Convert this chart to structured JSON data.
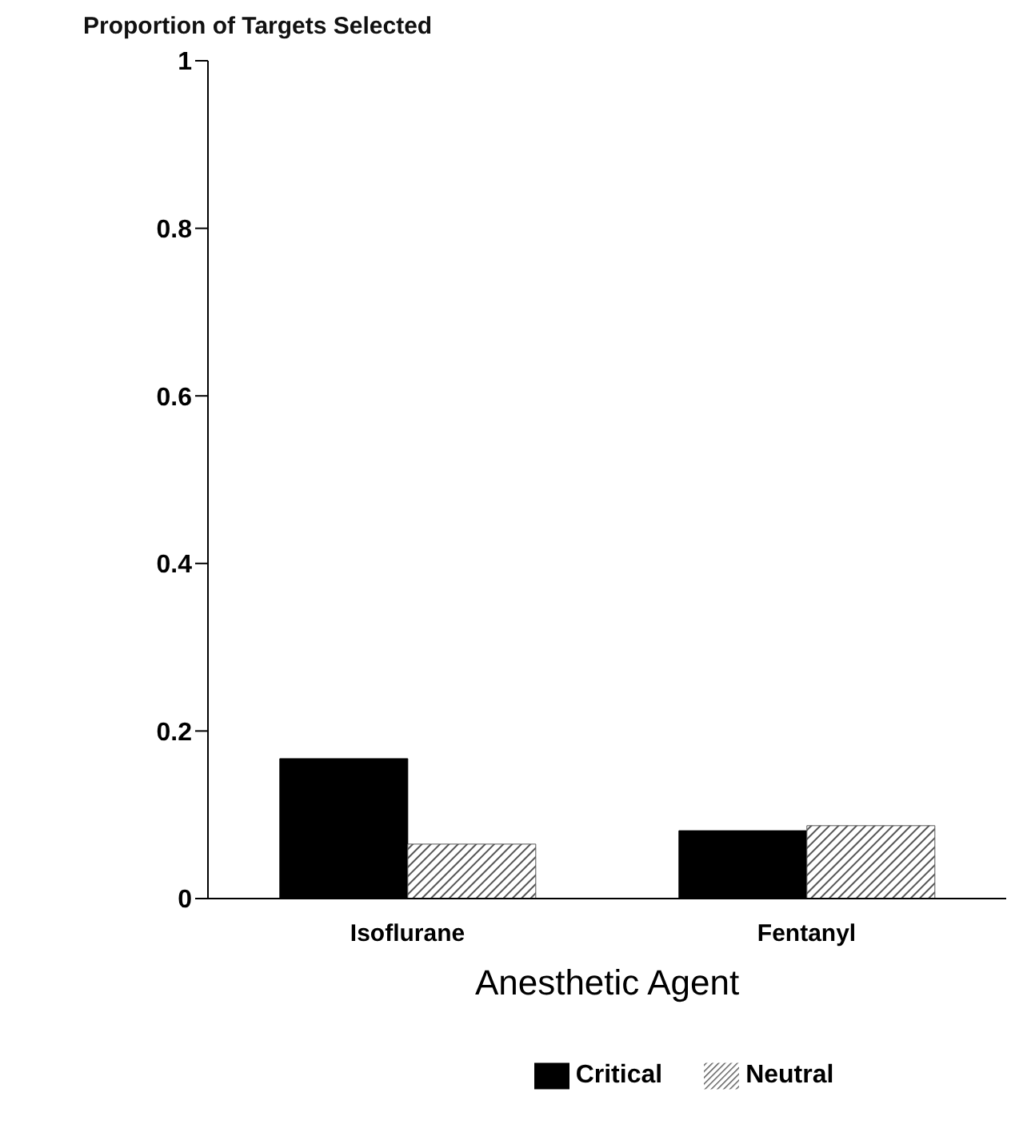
{
  "chart_data": {
    "type": "bar",
    "title": "Proportion of Targets Selected",
    "xlabel": "Anesthetic Agent",
    "categories": [
      "Isoflurane",
      "Fentanyl"
    ],
    "series": [
      {
        "name": "Critical",
        "color": "#000000",
        "values": [
          0.167,
          0.081
        ]
      },
      {
        "name": "Neutral",
        "color": "#555555",
        "values": [
          0.065,
          0.087
        ]
      }
    ],
    "ylim": [
      0,
      1
    ],
    "yticks": [
      0,
      0.2,
      0.4,
      0.6,
      0.8,
      1
    ],
    "grid": false,
    "legend": "bottom"
  }
}
